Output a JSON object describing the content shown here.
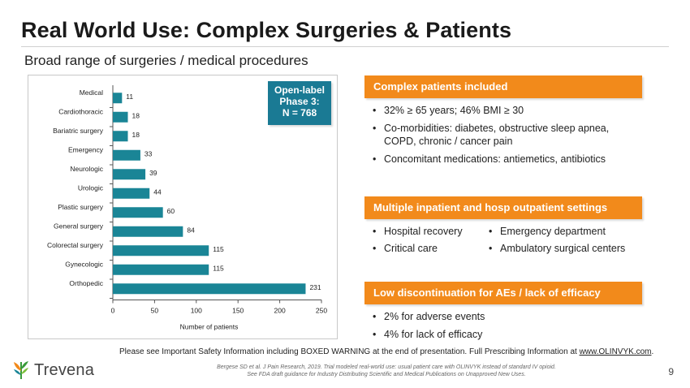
{
  "header": {
    "title": "Real World Use: Complex Surgeries & Patients",
    "subtitle": "Broad range of surgeries / medical procedures"
  },
  "callout": {
    "line1": "Open-label",
    "line2": "Phase 3:",
    "line3": "N = 768"
  },
  "panels": {
    "complex": {
      "title": "Complex patients included",
      "bullets": [
        "32% ≥ 65 years; 46% BMI ≥ 30",
        "Co-morbidities: diabetes, obstructive sleep apnea, COPD, chronic / cancer pain",
        "Concomitant medications: antiemetics, antibiotics"
      ]
    },
    "settings": {
      "title": "Multiple inpatient and hosp outpatient settings",
      "left": [
        "Hospital recovery",
        "Critical care"
      ],
      "right": [
        "Emergency department",
        "Ambulatory surgical centers"
      ]
    },
    "discontinuation": {
      "title": "Low discontinuation for AEs / lack of efficacy",
      "bullets": [
        "2% for adverse events",
        "4% for lack of efficacy"
      ]
    }
  },
  "footer": {
    "note_text": "Please see Important Safety Information including BOXED WARNING at the end of presentation. Full Prescribing Information at ",
    "note_link": "www.OLINVYK.com",
    "note_end": ".",
    "cite1": "Bergese SD et al. J Pain Research, 2019. Trial modeled real-world use: usual patient care with OLINVYK instead of standard IV opioid.",
    "cite2": "See FDA draft guidance for Industry Distributing Scientific and Medical Publications on Unapproved New Uses.",
    "logo": "Trevena",
    "page": "9"
  },
  "colors": {
    "bar": "#1a8596",
    "accent": "#f28a1b",
    "callout": "#1a7a94"
  },
  "chart_data": {
    "type": "bar",
    "orientation": "horizontal",
    "categories": [
      "Medical",
      "Cardiothoracic",
      "Bariatric surgery",
      "Emergency",
      "Neurologic",
      "Urologic",
      "Plastic surgery",
      "General surgery",
      "Colorectal surgery",
      "Gynecologic",
      "Orthopedic"
    ],
    "values": [
      11,
      18,
      18,
      33,
      39,
      44,
      60,
      84,
      115,
      115,
      231
    ],
    "xlabel": "Number of patients",
    "ylabel": "",
    "xlim": [
      0,
      250
    ],
    "xticks": [
      0,
      50,
      100,
      150,
      200,
      250
    ],
    "grid": false,
    "data_labels": true
  }
}
